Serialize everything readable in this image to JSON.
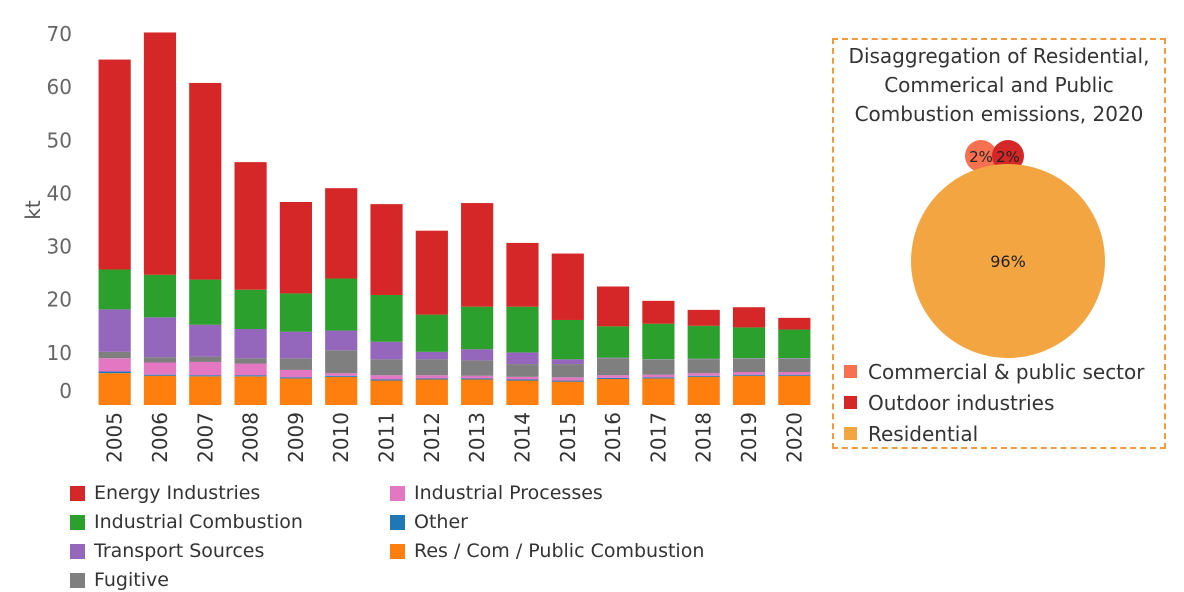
{
  "chart_data": [
    {
      "type": "bar",
      "stacked": true,
      "ylabel": "kt",
      "ylim": [
        0,
        70
      ],
      "yticks": [
        0,
        10,
        20,
        30,
        40,
        50,
        60,
        70
      ],
      "categories": [
        "2005",
        "2006",
        "2007",
        "2008",
        "2009",
        "2010",
        "2011",
        "2012",
        "2013",
        "2014",
        "2015",
        "2016",
        "2017",
        "2018",
        "2019",
        "2020"
      ],
      "series": [
        {
          "name": "Res / Com / Public Combustion",
          "color": "#ff7f0e",
          "values": [
            6.0,
            5.5,
            5.4,
            5.4,
            5.0,
            5.3,
            4.6,
            4.8,
            4.8,
            4.6,
            4.4,
            4.9,
            5.0,
            5.3,
            5.5,
            5.5
          ]
        },
        {
          "name": "Other",
          "color": "#1f77b4",
          "values": [
            0.3,
            0.2,
            0.2,
            0.2,
            0.2,
            0.2,
            0.2,
            0.2,
            0.2,
            0.2,
            0.2,
            0.2,
            0.2,
            0.2,
            0.2,
            0.2
          ]
        },
        {
          "name": "Industrial Processes",
          "color": "#e377c2",
          "values": [
            2.5,
            2.3,
            2.5,
            2.2,
            1.4,
            0.5,
            0.8,
            0.6,
            0.5,
            0.5,
            0.6,
            0.5,
            0.5,
            0.5,
            0.5,
            0.5
          ]
        },
        {
          "name": "Fugitive",
          "color": "#7f7f7f",
          "values": [
            1.2,
            1.0,
            1.0,
            1.0,
            2.2,
            4.3,
            3.0,
            3.0,
            2.9,
            2.4,
            2.5,
            3.2,
            2.8,
            2.6,
            2.5,
            2.5
          ]
        },
        {
          "name": "Transport Sources",
          "color": "#9467bd",
          "values": [
            8.0,
            7.5,
            6.0,
            5.5,
            5.0,
            3.7,
            3.3,
            1.4,
            2.1,
            2.2,
            0.9,
            0.1,
            0.1,
            0.1,
            0.1,
            0.1
          ]
        },
        {
          "name": "Industrial Combustion",
          "color": "#2ca02c",
          "values": [
            7.5,
            8.0,
            8.5,
            7.4,
            7.2,
            9.8,
            8.8,
            7.0,
            8.0,
            8.6,
            7.4,
            5.9,
            6.7,
            6.2,
            5.8,
            5.4
          ]
        },
        {
          "name": "Energy Industries",
          "color": "#d62728",
          "values": [
            39.5,
            45.6,
            37.0,
            24.0,
            17.2,
            17.0,
            17.1,
            15.8,
            19.5,
            12.0,
            12.5,
            7.5,
            4.3,
            3.0,
            3.8,
            2.2
          ]
        }
      ]
    },
    {
      "type": "bubble",
      "title": "Disaggregation of Residential, Commerical and Public Combustion emissions, 2020",
      "slices": [
        {
          "name": "Commercial & public sector",
          "value": 2,
          "label": "2%",
          "color": "#f7704f"
        },
        {
          "name": "Outdoor industries",
          "value": 2,
          "label": "2%",
          "color": "#d62728"
        },
        {
          "name": "Residential",
          "value": 96,
          "label": "96%",
          "color": "#f2a541"
        }
      ]
    }
  ],
  "legend_order": [
    "Energy Industries",
    "Industrial Processes",
    "Industrial Combustion",
    "Other",
    "Transport Sources",
    "Res / Com / Public Combustion",
    "Fugitive"
  ]
}
